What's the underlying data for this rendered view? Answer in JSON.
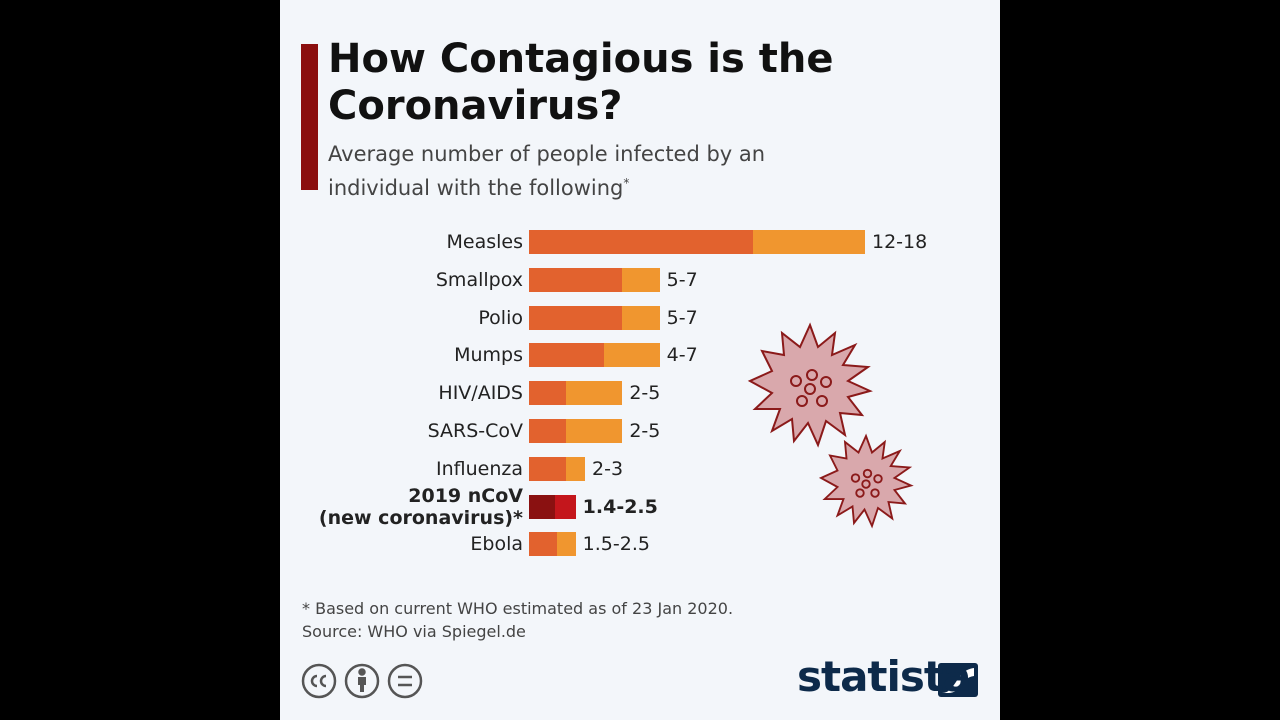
{
  "chart_data": {
    "type": "range-bar",
    "title": "How Contagious is the Coronavirus?",
    "subtitle": "Average number of people infected by an individual with the following",
    "subtitle_mark": "*",
    "categories": [
      "Measles",
      "Smallpox",
      "Polio",
      "Mumps",
      "HIV/AIDS",
      "SARS-CoV",
      "Influenza",
      "2019 nCoV\n(new coronavirus)*",
      "Ebola"
    ],
    "low": [
      12,
      5,
      5,
      4,
      2,
      2,
      2,
      1.4,
      1.5
    ],
    "high": [
      18,
      7,
      7,
      7,
      5,
      5,
      3,
      2.5,
      2.5
    ],
    "value_labels": [
      "12-18",
      "5-7",
      "5-7",
      "4-7",
      "2-5",
      "2-5",
      "2-3",
      "1.4-2.5",
      "1.5-2.5"
    ],
    "low_color": "#e2622e",
    "high_color": "#f0962f",
    "highlight": 7,
    "highlight_low_color": "#8a1111",
    "highlight_high_color": "#c4161c",
    "footnote": "* Based on current WHO estimated as of 23 Jan 2020.",
    "source": "Source: WHO via Spiegel.de",
    "brand": "statista"
  }
}
